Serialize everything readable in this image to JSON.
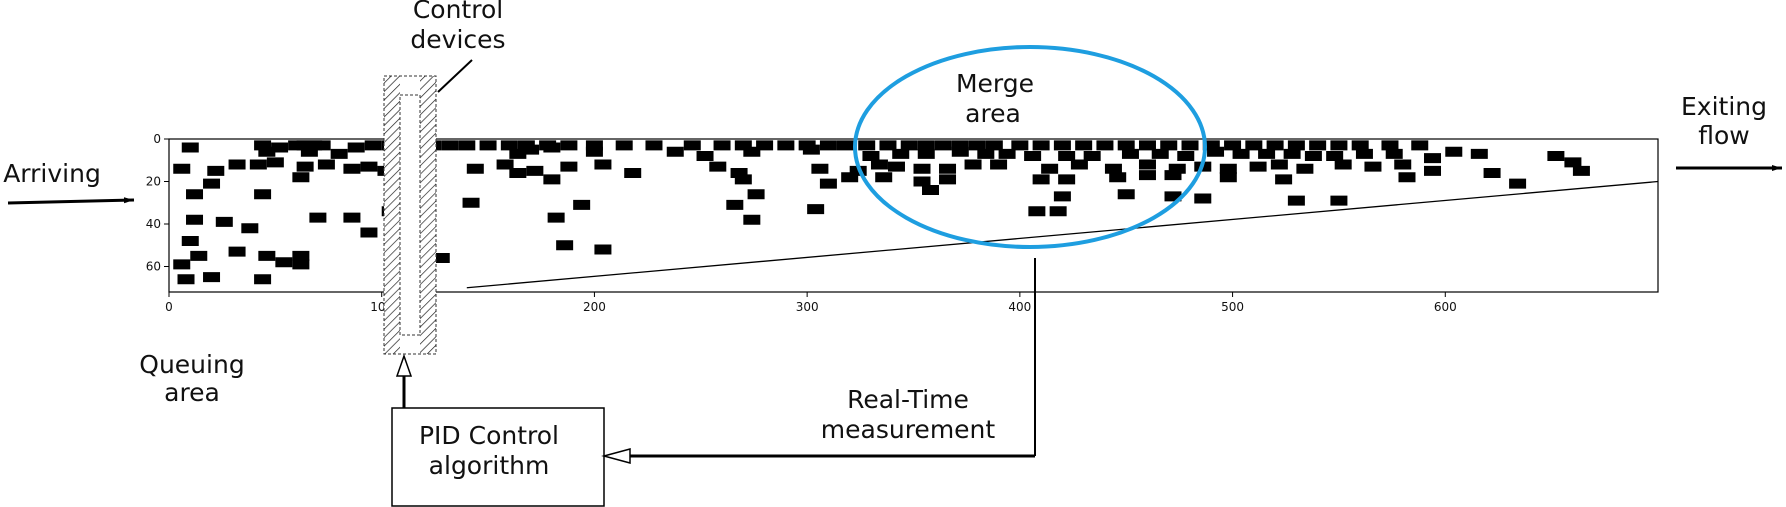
{
  "labels": {
    "control_devices_line1": "Control",
    "control_devices_line2": "devices",
    "merge_line1": "Merge",
    "merge_line2": "area",
    "exiting_line1": "Exiting",
    "exiting_line2": "flow",
    "arriving": "Arriving",
    "queuing_line1": "Queuing",
    "queuing_line2": "area",
    "pid_line1": "PID Control",
    "pid_line2": "algorithm",
    "realtime_line1": "Real-Time",
    "realtime_line2": "measurement"
  },
  "colors": {
    "merge_ellipse": "#1e9ee0",
    "vehicle": "#000000"
  },
  "plot": {
    "x_ticks": [
      "0",
      "100",
      "200",
      "300",
      "400",
      "500",
      "600"
    ],
    "y_ticks": [
      "0",
      "20",
      "40",
      "60"
    ],
    "xlim": [
      0,
      700
    ],
    "ylim": [
      72,
      0
    ],
    "boundary_line": [
      [
        140,
        70
      ],
      [
        700,
        20
      ]
    ],
    "vehicles": [
      [
        6,
        4
      ],
      [
        40,
        3
      ],
      [
        48,
        4
      ],
      [
        56,
        3
      ],
      [
        60,
        3
      ],
      [
        64,
        3
      ],
      [
        68,
        3
      ],
      [
        84,
        4
      ],
      [
        92,
        3
      ],
      [
        100,
        3
      ],
      [
        106,
        3
      ],
      [
        114,
        3
      ],
      [
        120,
        3
      ],
      [
        128,
        3
      ],
      [
        136,
        3
      ],
      [
        146,
        3
      ],
      [
        156,
        3
      ],
      [
        164,
        3
      ],
      [
        174,
        3
      ],
      [
        184,
        3
      ],
      [
        196,
        3
      ],
      [
        210,
        3
      ],
      [
        224,
        3
      ],
      [
        242,
        3
      ],
      [
        256,
        3
      ],
      [
        266,
        3
      ],
      [
        276,
        3
      ],
      [
        286,
        3
      ],
      [
        296,
        3
      ],
      [
        306,
        3
      ],
      [
        314,
        3
      ],
      [
        324,
        3
      ],
      [
        334,
        3
      ],
      [
        344,
        3
      ],
      [
        352,
        3
      ],
      [
        360,
        3
      ],
      [
        368,
        3
      ],
      [
        376,
        3
      ],
      [
        384,
        3
      ],
      [
        396,
        3
      ],
      [
        406,
        3
      ],
      [
        416,
        3
      ],
      [
        426,
        3
      ],
      [
        436,
        3
      ],
      [
        446,
        3
      ],
      [
        456,
        3
      ],
      [
        466,
        3
      ],
      [
        476,
        3
      ],
      [
        486,
        3
      ],
      [
        496,
        3
      ],
      [
        506,
        3
      ],
      [
        516,
        3
      ],
      [
        526,
        3
      ],
      [
        536,
        3
      ],
      [
        546,
        3
      ],
      [
        556,
        3
      ],
      [
        570,
        3
      ],
      [
        584,
        3
      ],
      [
        42,
        6
      ],
      [
        62,
        6
      ],
      [
        76,
        7
      ],
      [
        104,
        5
      ],
      [
        160,
        7
      ],
      [
        166,
        5
      ],
      [
        176,
        4
      ],
      [
        196,
        6
      ],
      [
        234,
        6
      ],
      [
        248,
        8
      ],
      [
        270,
        6
      ],
      [
        298,
        5
      ],
      [
        326,
        8
      ],
      [
        340,
        7
      ],
      [
        352,
        7
      ],
      [
        368,
        6
      ],
      [
        380,
        7
      ],
      [
        390,
        7
      ],
      [
        402,
        8
      ],
      [
        418,
        8
      ],
      [
        430,
        8
      ],
      [
        448,
        7
      ],
      [
        462,
        7
      ],
      [
        474,
        8
      ],
      [
        488,
        6
      ],
      [
        500,
        7
      ],
      [
        512,
        7
      ],
      [
        524,
        7
      ],
      [
        534,
        8
      ],
      [
        544,
        8
      ],
      [
        558,
        7
      ],
      [
        572,
        7
      ],
      [
        590,
        9
      ],
      [
        600,
        6
      ],
      [
        612,
        7
      ],
      [
        648,
        8
      ],
      [
        656,
        11
      ],
      [
        2,
        14
      ],
      [
        18,
        15
      ],
      [
        28,
        12
      ],
      [
        38,
        12
      ],
      [
        46,
        11
      ],
      [
        60,
        13
      ],
      [
        70,
        12
      ],
      [
        82,
        14
      ],
      [
        90,
        13
      ],
      [
        98,
        15
      ],
      [
        140,
        14
      ],
      [
        154,
        12
      ],
      [
        160,
        16
      ],
      [
        168,
        15
      ],
      [
        184,
        13
      ],
      [
        200,
        12
      ],
      [
        214,
        16
      ],
      [
        254,
        13
      ],
      [
        264,
        16
      ],
      [
        302,
        14
      ],
      [
        320,
        15
      ],
      [
        330,
        12
      ],
      [
        338,
        13
      ],
      [
        350,
        14
      ],
      [
        362,
        14
      ],
      [
        374,
        12
      ],
      [
        386,
        12
      ],
      [
        410,
        14
      ],
      [
        424,
        12
      ],
      [
        440,
        14
      ],
      [
        456,
        12
      ],
      [
        470,
        14
      ],
      [
        482,
        13
      ],
      [
        494,
        14
      ],
      [
        508,
        13
      ],
      [
        518,
        12
      ],
      [
        530,
        14
      ],
      [
        548,
        12
      ],
      [
        562,
        13
      ],
      [
        576,
        12
      ],
      [
        590,
        15
      ],
      [
        618,
        16
      ],
      [
        660,
        15
      ],
      [
        16,
        21
      ],
      [
        58,
        18
      ],
      [
        108,
        20
      ],
      [
        176,
        19
      ],
      [
        266,
        19
      ],
      [
        306,
        21
      ],
      [
        316,
        18
      ],
      [
        332,
        18
      ],
      [
        350,
        20
      ],
      [
        362,
        19
      ],
      [
        406,
        19
      ],
      [
        418,
        19
      ],
      [
        442,
        18
      ],
      [
        456,
        17
      ],
      [
        468,
        17
      ],
      [
        494,
        18
      ],
      [
        520,
        19
      ],
      [
        578,
        18
      ],
      [
        630,
        21
      ],
      [
        8,
        26
      ],
      [
        40,
        26
      ],
      [
        138,
        30
      ],
      [
        190,
        31
      ],
      [
        262,
        31
      ],
      [
        272,
        26
      ],
      [
        354,
        24
      ],
      [
        416,
        27
      ],
      [
        446,
        26
      ],
      [
        468,
        27
      ],
      [
        482,
        28
      ],
      [
        526,
        29
      ],
      [
        546,
        29
      ],
      [
        8,
        38
      ],
      [
        22,
        39
      ],
      [
        34,
        42
      ],
      [
        66,
        37
      ],
      [
        82,
        37
      ],
      [
        90,
        44
      ],
      [
        100,
        34
      ],
      [
        178,
        37
      ],
      [
        270,
        38
      ],
      [
        300,
        33
      ],
      [
        404,
        34
      ],
      [
        414,
        34
      ],
      [
        6,
        48
      ],
      [
        28,
        53
      ],
      [
        10,
        55
      ],
      [
        58,
        55
      ],
      [
        42,
        55
      ],
      [
        50,
        58
      ],
      [
        182,
        50
      ],
      [
        200,
        52
      ],
      [
        114,
        52
      ],
      [
        124,
        56
      ],
      [
        2,
        59
      ],
      [
        4,
        66
      ],
      [
        16,
        65
      ],
      [
        40,
        66
      ],
      [
        58,
        59
      ]
    ]
  }
}
